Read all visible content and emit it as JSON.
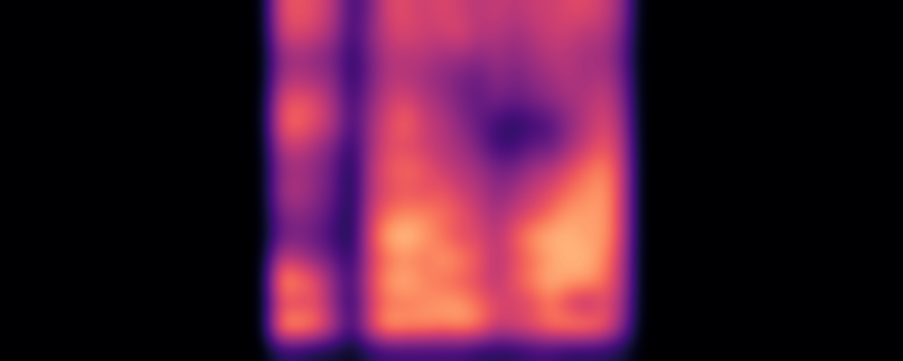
{
  "chart_data": {
    "type": "heatmap",
    "tick_labels": false,
    "zlim": [
      0,
      1
    ],
    "cells": [
      [
        0,
        0,
        0,
        0,
        0,
        0,
        0,
        0,
        0,
        0,
        0,
        0,
        0,
        0,
        0,
        0.6,
        0.65,
        0.6,
        0.5,
        0.2,
        0.35,
        0.6,
        0.6,
        0.55,
        0.6,
        0.55,
        0.5,
        0.55,
        0.5,
        0.55,
        0.55,
        0.6,
        0.6,
        0.55,
        0.4,
        0,
        0,
        0,
        0,
        0,
        0,
        0,
        0,
        0,
        0,
        0,
        0,
        0,
        0,
        0
      ],
      [
        0,
        0,
        0,
        0,
        0,
        0,
        0,
        0,
        0,
        0,
        0,
        0,
        0,
        0,
        0,
        0.55,
        0.6,
        0.55,
        0.45,
        0.2,
        0.4,
        0.55,
        0.6,
        0.55,
        0.55,
        0.6,
        0.5,
        0.5,
        0.45,
        0.5,
        0.55,
        0.55,
        0.5,
        0.5,
        0.35,
        0,
        0,
        0,
        0,
        0,
        0,
        0,
        0,
        0,
        0,
        0,
        0,
        0,
        0,
        0
      ],
      [
        0,
        0,
        0,
        0,
        0,
        0,
        0,
        0,
        0,
        0,
        0,
        0,
        0,
        0,
        0,
        0.4,
        0.45,
        0.4,
        0.35,
        0.15,
        0.35,
        0.5,
        0.5,
        0.5,
        0.45,
        0.45,
        0.4,
        0.45,
        0.4,
        0.45,
        0.5,
        0.5,
        0.45,
        0.45,
        0.3,
        0,
        0,
        0,
        0,
        0,
        0,
        0,
        0,
        0,
        0,
        0,
        0,
        0,
        0,
        0
      ],
      [
        0,
        0,
        0,
        0,
        0,
        0,
        0,
        0,
        0,
        0,
        0,
        0,
        0,
        0,
        0,
        0.45,
        0.5,
        0.45,
        0.4,
        0.15,
        0.35,
        0.5,
        0.5,
        0.45,
        0.4,
        0.35,
        0.3,
        0.4,
        0.35,
        0.4,
        0.45,
        0.5,
        0.45,
        0.5,
        0.35,
        0,
        0,
        0,
        0,
        0,
        0,
        0,
        0,
        0,
        0,
        0,
        0,
        0,
        0,
        0
      ],
      [
        0,
        0,
        0,
        0,
        0,
        0,
        0,
        0,
        0,
        0,
        0,
        0,
        0,
        0,
        0,
        0.6,
        0.65,
        0.6,
        0.45,
        0.2,
        0.4,
        0.55,
        0.6,
        0.5,
        0.45,
        0.35,
        0.3,
        0.35,
        0.3,
        0.35,
        0.4,
        0.45,
        0.5,
        0.55,
        0.4,
        0,
        0,
        0,
        0,
        0,
        0,
        0,
        0,
        0,
        0,
        0,
        0,
        0,
        0,
        0
      ],
      [
        0,
        0,
        0,
        0,
        0,
        0,
        0,
        0,
        0,
        0,
        0,
        0,
        0,
        0,
        0,
        0.65,
        0.7,
        0.6,
        0.5,
        0.2,
        0.45,
        0.6,
        0.7,
        0.55,
        0.5,
        0.4,
        0.3,
        0.2,
        0.15,
        0.2,
        0.25,
        0.4,
        0.5,
        0.6,
        0.45,
        0,
        0,
        0,
        0,
        0,
        0,
        0,
        0,
        0,
        0,
        0,
        0,
        0,
        0,
        0
      ],
      [
        0,
        0,
        0,
        0,
        0,
        0,
        0,
        0,
        0,
        0,
        0,
        0,
        0,
        0,
        0,
        0.5,
        0.55,
        0.45,
        0.35,
        0.15,
        0.45,
        0.6,
        0.6,
        0.55,
        0.5,
        0.45,
        0.35,
        0.2,
        0.2,
        0.3,
        0.3,
        0.45,
        0.55,
        0.65,
        0.5,
        0,
        0,
        0,
        0,
        0,
        0,
        0,
        0,
        0,
        0,
        0,
        0,
        0,
        0,
        0
      ],
      [
        0,
        0,
        0,
        0,
        0,
        0,
        0,
        0,
        0,
        0,
        0,
        0,
        0,
        0,
        0,
        0.4,
        0.45,
        0.4,
        0.3,
        0.1,
        0.5,
        0.65,
        0.7,
        0.65,
        0.55,
        0.5,
        0.45,
        0.35,
        0.35,
        0.45,
        0.5,
        0.6,
        0.7,
        0.75,
        0.55,
        0,
        0,
        0,
        0,
        0,
        0,
        0,
        0,
        0,
        0,
        0,
        0,
        0,
        0,
        0
      ],
      [
        0,
        0,
        0,
        0,
        0,
        0,
        0,
        0,
        0,
        0,
        0,
        0,
        0,
        0,
        0,
        0.45,
        0.5,
        0.4,
        0.3,
        0.1,
        0.5,
        0.6,
        0.65,
        0.6,
        0.65,
        0.55,
        0.5,
        0.4,
        0.45,
        0.55,
        0.6,
        0.7,
        0.75,
        0.8,
        0.55,
        0,
        0,
        0,
        0,
        0,
        0,
        0,
        0,
        0,
        0,
        0,
        0,
        0,
        0,
        0
      ],
      [
        0,
        0,
        0,
        0,
        0,
        0,
        0,
        0,
        0,
        0,
        0,
        0,
        0,
        0,
        0,
        0.35,
        0.4,
        0.35,
        0.25,
        0.1,
        0.55,
        0.7,
        0.75,
        0.75,
        0.7,
        0.65,
        0.55,
        0.45,
        0.55,
        0.6,
        0.7,
        0.8,
        0.8,
        0.8,
        0.55,
        0,
        0,
        0,
        0,
        0,
        0,
        0,
        0,
        0,
        0,
        0,
        0,
        0,
        0,
        0
      ],
      [
        0,
        0,
        0,
        0,
        0,
        0,
        0,
        0,
        0,
        0,
        0,
        0,
        0,
        0,
        0,
        0.3,
        0.35,
        0.3,
        0.2,
        0.1,
        0.6,
        0.85,
        0.9,
        0.8,
        0.7,
        0.6,
        0.6,
        0.5,
        0.65,
        0.8,
        0.85,
        0.85,
        0.8,
        0.8,
        0.55,
        0,
        0,
        0,
        0,
        0,
        0,
        0,
        0,
        0,
        0,
        0,
        0,
        0,
        0,
        0
      ],
      [
        0,
        0,
        0,
        0,
        0,
        0,
        0,
        0,
        0,
        0,
        0,
        0,
        0,
        0,
        0,
        0.55,
        0.5,
        0.4,
        0.3,
        0.15,
        0.55,
        0.7,
        0.75,
        0.7,
        0.8,
        0.75,
        0.65,
        0.5,
        0.6,
        0.7,
        0.8,
        0.85,
        0.85,
        0.75,
        0.5,
        0,
        0,
        0,
        0,
        0,
        0,
        0,
        0,
        0,
        0,
        0,
        0,
        0,
        0,
        0
      ],
      [
        0,
        0,
        0,
        0,
        0,
        0,
        0,
        0,
        0,
        0,
        0,
        0,
        0,
        0,
        0,
        0.8,
        0.75,
        0.65,
        0.4,
        0.2,
        0.6,
        0.8,
        0.85,
        0.75,
        0.7,
        0.65,
        0.6,
        0.5,
        0.65,
        0.75,
        0.85,
        0.8,
        0.8,
        0.7,
        0.5,
        0,
        0,
        0,
        0,
        0,
        0,
        0,
        0,
        0,
        0,
        0,
        0,
        0,
        0,
        0
      ],
      [
        0,
        0,
        0,
        0,
        0,
        0,
        0,
        0,
        0,
        0,
        0,
        0,
        0,
        0,
        0,
        0.6,
        0.55,
        0.6,
        0.4,
        0.15,
        0.55,
        0.7,
        0.7,
        0.75,
        0.8,
        0.8,
        0.7,
        0.6,
        0.55,
        0.6,
        0.7,
        0.55,
        0.45,
        0.6,
        0.45,
        0,
        0,
        0,
        0,
        0,
        0,
        0,
        0,
        0,
        0,
        0,
        0,
        0,
        0,
        0
      ],
      [
        0,
        0,
        0,
        0,
        0,
        0,
        0,
        0,
        0,
        0,
        0,
        0,
        0,
        0,
        0,
        0.8,
        0.85,
        0.75,
        0.5,
        0.2,
        0.6,
        0.85,
        0.8,
        0.8,
        0.75,
        0.8,
        0.75,
        0.55,
        0.6,
        0.65,
        0.75,
        0.8,
        0.8,
        0.7,
        0.4,
        0,
        0,
        0,
        0,
        0,
        0,
        0,
        0,
        0,
        0,
        0,
        0,
        0,
        0,
        0
      ],
      [
        0,
        0,
        0,
        0,
        0,
        0,
        0,
        0,
        0,
        0,
        0,
        0,
        0,
        0,
        0,
        0.15,
        0.15,
        0.1,
        0.1,
        0.05,
        0.15,
        0.2,
        0.2,
        0.2,
        0.2,
        0.2,
        0.15,
        0.15,
        0.15,
        0.2,
        0.2,
        0.15,
        0.15,
        0.15,
        0.1,
        0,
        0,
        0,
        0,
        0,
        0,
        0,
        0,
        0,
        0,
        0,
        0,
        0,
        0,
        0
      ]
    ]
  }
}
